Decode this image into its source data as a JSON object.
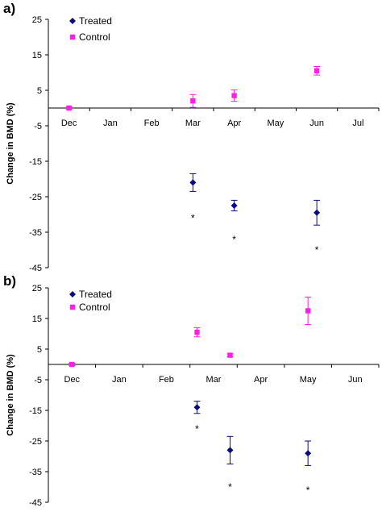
{
  "colors": {
    "treated": "#0b0b7a",
    "control": "#ff1ee6",
    "axis": "#000000"
  },
  "chart_data": [
    {
      "type": "scatter",
      "panel_label": "a)",
      "ylabel": "Change in BMD (%)",
      "xlabel": "",
      "categories": [
        "Dec",
        "Jan",
        "Feb",
        "Mar",
        "Apr",
        "May",
        "Jun",
        "Jul"
      ],
      "ylim": [
        -45,
        25
      ],
      "yticks": [
        25,
        15,
        5,
        -5,
        -15,
        -25,
        -35,
        -45
      ],
      "legend": "top-left",
      "series": [
        {
          "name": "Treated",
          "marker": "diamond",
          "points": [
            {
              "x": "Mar",
              "y": -21,
              "err": 2.5
            },
            {
              "x": "Apr",
              "y": -27.5,
              "err": 1.5
            },
            {
              "x": "Jun",
              "y": -29.5,
              "err": 3.5
            }
          ]
        },
        {
          "name": "Control",
          "marker": "square",
          "points": [
            {
              "x": "Dec",
              "y": 0,
              "err": 0.4
            },
            {
              "x": "Mar",
              "y": 2,
              "err": 1.8
            },
            {
              "x": "Apr",
              "y": 3.5,
              "err": 1.6
            },
            {
              "x": "Jun",
              "y": 10.5,
              "err": 1.2
            }
          ]
        }
      ],
      "annotations": [
        {
          "text": "*",
          "x": "Mar",
          "y": -31
        },
        {
          "text": "*",
          "x": "Apr",
          "y": -37
        },
        {
          "text": "*",
          "x": "Jun",
          "y": -40
        }
      ]
    },
    {
      "type": "scatter",
      "panel_label": "b)",
      "ylabel": "Change in BMD (%)",
      "xlabel": "",
      "categories": [
        "Dec",
        "Jan",
        "Feb",
        "Mar",
        "Apr",
        "May",
        "Jun"
      ],
      "ylim": [
        -45,
        25
      ],
      "yticks": [
        25,
        15,
        5,
        -5,
        -15,
        -25,
        -35,
        -45
      ],
      "legend": "top-left",
      "series": [
        {
          "name": "Treated",
          "marker": "diamond",
          "points": [
            {
              "x": 2.65,
              "y": -14,
              "err": 2
            },
            {
              "x": 3.35,
              "y": -28,
              "err": 4.5
            },
            {
              "x": 5,
              "y": -29,
              "err": 4
            }
          ]
        },
        {
          "name": "Control",
          "marker": "square",
          "points": [
            {
              "x": 0,
              "y": 0,
              "err": 0.4
            },
            {
              "x": 2.65,
              "y": 10.5,
              "err": 1.5
            },
            {
              "x": 3.35,
              "y": 3,
              "err": 0.5
            },
            {
              "x": 5,
              "y": 17.5,
              "err": 4.5
            }
          ]
        }
      ],
      "annotations": [
        {
          "text": "*",
          "x": 2.65,
          "y": -21
        },
        {
          "text": "*",
          "x": 3.35,
          "y": -40
        },
        {
          "text": "*",
          "x": 5,
          "y": -41
        }
      ]
    }
  ]
}
